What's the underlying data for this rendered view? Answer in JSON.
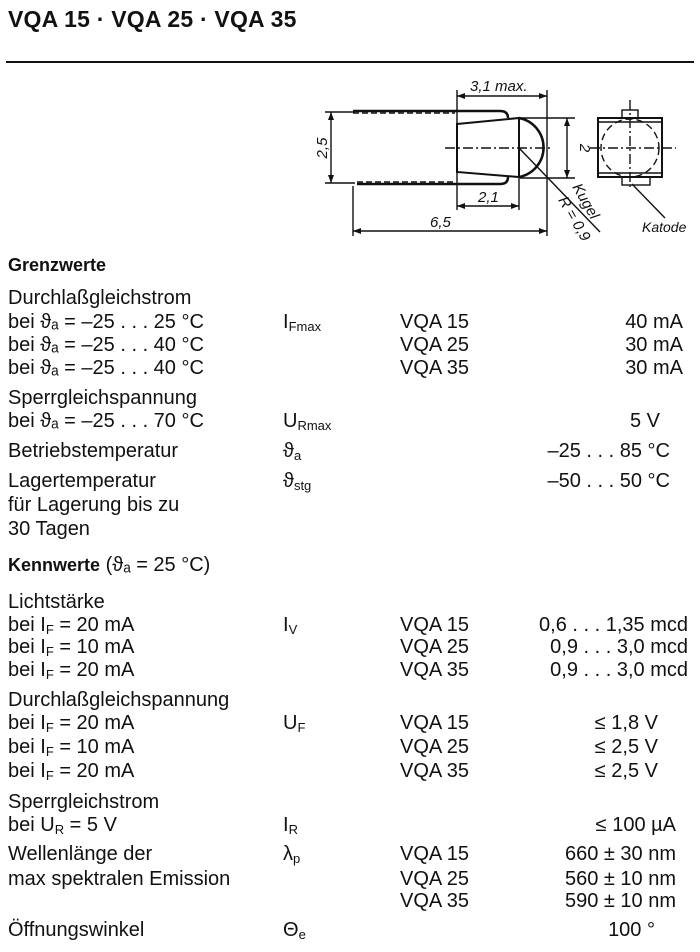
{
  "title": "VQA 15 · VQA 25 · VQA 35",
  "diagram": {
    "dim_width": "3,1 max.",
    "dim_height": "2,5",
    "dim_dome": "2",
    "dim_body": "2,1",
    "dim_total": "6,5",
    "dome_label": "Kugel",
    "dome_radius": "R = 0,9",
    "cathode_label": "Katode"
  },
  "grenzwerte_heading": "Grenzwerte",
  "kennwerte_heading": "Kennwerte",
  "kennwerte_condition": "(ϑₐ = 25 °C)",
  "rows": [
    {
      "label": "Durchlaßgleichstrom"
    },
    {
      "label": "bei ϑₐ = –25 . . . 25 °C",
      "symbol": "I",
      "symbol_sub": "Fmax",
      "type": "VQA 15",
      "value": "40 mA"
    },
    {
      "label": "bei ϑₐ = –25 . . . 40 °C",
      "type": "VQA 25",
      "value": "30 mA"
    },
    {
      "label": "bei ϑₐ = –25 . . . 40 °C",
      "type": "VQA 35",
      "value": "30 mA"
    },
    {
      "label": "Sperrgleichspannung"
    },
    {
      "label": "bei ϑₐ = –25 . . . 70 °C",
      "symbol": "U",
      "symbol_sub": "Rmax",
      "value": "5 V"
    },
    {
      "label": "Betriebstemperatur",
      "symbol": "ϑ",
      "symbol_sub": "a",
      "value": "–25 . . . 85 °C"
    },
    {
      "label": "Lagertemperatur",
      "symbol": "ϑ",
      "symbol_sub": "stg",
      "value": "–50 . . . 50 °C"
    },
    {
      "label": "für Lagerung bis zu"
    },
    {
      "label": "30 Tagen"
    },
    {
      "label": "Lichtstärke"
    },
    {
      "label": "bei I",
      "label_sub": "F",
      "label_post": " = 20 mA",
      "symbol": "I",
      "symbol_sub": "V",
      "type": "VQA 15",
      "value": "0,6 . . . 1,35 mcd"
    },
    {
      "label": "bei I",
      "label_sub": "F",
      "label_post": " = 10 mA",
      "type": "VQA 25",
      "value": "0,9 . . . 3,0 mcd"
    },
    {
      "label": "bei I",
      "label_sub": "F",
      "label_post": " = 20 mA",
      "type": "VQA 35",
      "value": "0,9 . . . 3,0 mcd"
    },
    {
      "label": "Durchlaßgleichspannung"
    },
    {
      "label": "bei I",
      "label_sub": "F",
      "label_post": " = 20 mA",
      "symbol": "U",
      "symbol_sub": "F",
      "type": "VQA 15",
      "value": "≤ 1,8 V"
    },
    {
      "label": "bei I",
      "label_sub": "F",
      "label_post": " = 10 mA",
      "type": "VQA 25",
      "value": "≤ 2,5 V"
    },
    {
      "label": "bei I",
      "label_sub": "F",
      "label_post": " = 20 mA",
      "type": "VQA 35",
      "value": "≤ 2,5 V"
    },
    {
      "label": "Sperrgleichstrom"
    },
    {
      "label": "bei U",
      "label_sub": "R",
      "label_post": " = 5 V",
      "symbol": "I",
      "symbol_sub": "R",
      "value": "≤ 100 µA"
    },
    {
      "label": "Wellenlänge der",
      "symbol": "λ",
      "symbol_sub": "p",
      "type": "VQA 15",
      "value": "660 ± 30 nm"
    },
    {
      "label": "max spektralen Emission",
      "type": "VQA 25",
      "value": "560 ± 10 nm"
    },
    {
      "type": "VQA 35",
      "value": "590 ± 10 nm"
    },
    {
      "label": "Öffnungswinkel",
      "symbol": "Θ",
      "symbol_sub": "e",
      "value": "100 °"
    }
  ]
}
